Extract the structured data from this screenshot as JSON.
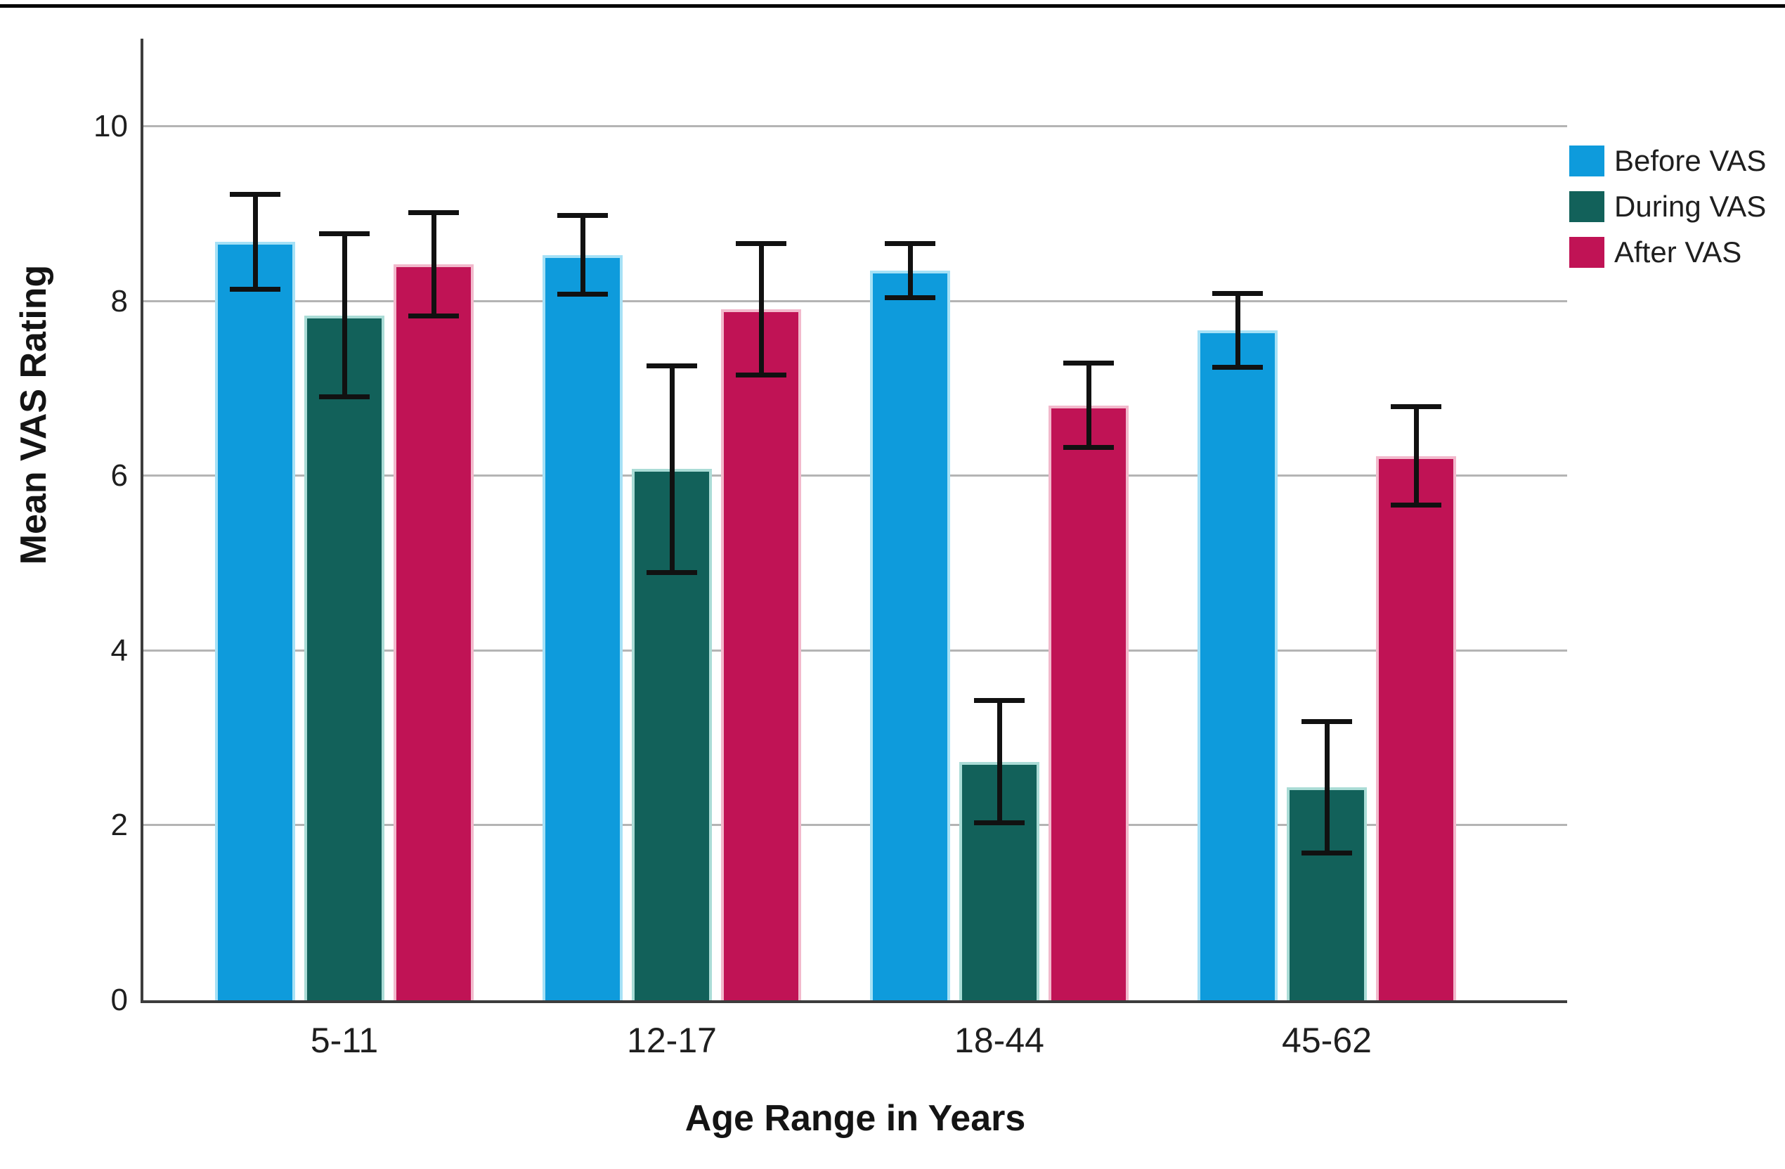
{
  "chart_data": {
    "type": "bar",
    "title": "",
    "categories": [
      "5-11",
      "12-17",
      "18-44",
      "45-62"
    ],
    "series": [
      {
        "name": "Before VAS",
        "color": "#0E9BDC",
        "edge_color": "#A6E1F6",
        "values": [
          8.68,
          8.53,
          8.35,
          7.67
        ],
        "errors": [
          0.57,
          0.48,
          0.34,
          0.45
        ]
      },
      {
        "name": "During VAS",
        "color": "#12615A",
        "edge_color": "#AADCD6",
        "values": [
          7.84,
          6.08,
          2.73,
          2.44
        ],
        "errors": [
          0.96,
          1.21,
          0.73,
          0.78
        ]
      },
      {
        "name": "After VAS",
        "color": "#C01355",
        "edge_color": "#F2B9CC",
        "values": [
          8.42,
          7.91,
          6.81,
          6.23
        ],
        "errors": [
          0.62,
          0.78,
          0.51,
          0.59
        ]
      }
    ],
    "xlabel": "Age Range in Years",
    "ylabel": "Mean VAS Rating",
    "yticks": [
      0,
      2,
      4,
      6,
      8,
      10
    ],
    "ylim": [
      0,
      11
    ],
    "grid": true,
    "legend_position": "top-right",
    "error_bar_color": "#111111",
    "axis_color": "#3D3D3D",
    "gridline_color": "#B4B4B4"
  }
}
